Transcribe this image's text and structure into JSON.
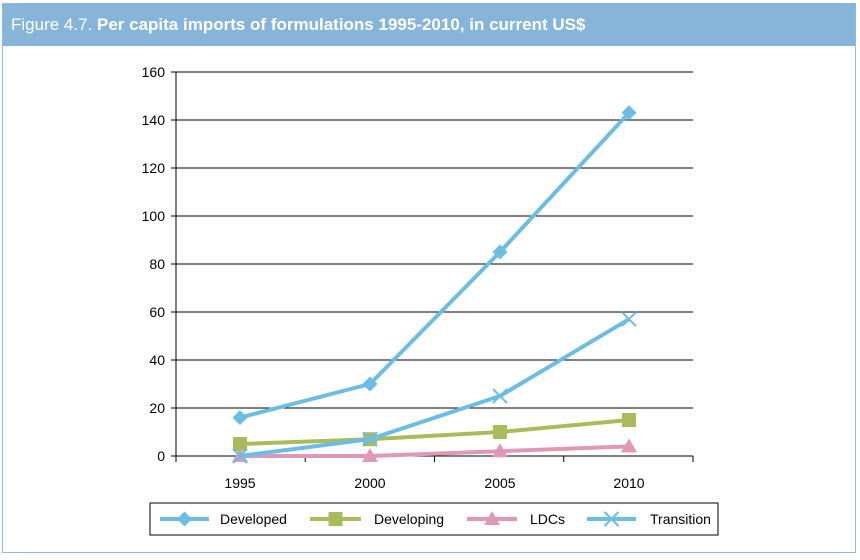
{
  "figure": {
    "label": "Figure 4.7.",
    "title": "Per capita imports of formulations 1995-2010, in current US$"
  },
  "chart_data": {
    "type": "line",
    "title": "Per capita imports of formulations 1995-2010, in current US$",
    "xlabel": "",
    "ylabel": "",
    "x": [
      "1995",
      "2000",
      "2005",
      "2010"
    ],
    "ylim": [
      0,
      160
    ],
    "yticks": [
      0,
      20,
      40,
      60,
      80,
      100,
      120,
      140,
      160
    ],
    "grid": true,
    "legend_position": "bottom",
    "series": [
      {
        "name": "Developed",
        "values": [
          16,
          30,
          85,
          143
        ],
        "color": "#6cbde4",
        "marker": "diamond"
      },
      {
        "name": "Developing",
        "values": [
          5,
          7,
          10,
          15
        ],
        "color": "#a8bc5c",
        "marker": "square"
      },
      {
        "name": "LDCs",
        "values": [
          0,
          0,
          2,
          4
        ],
        "color": "#e098b6",
        "marker": "triangle"
      },
      {
        "name": "Transition",
        "values": [
          0,
          7,
          25,
          57
        ],
        "color": "#6cbde4",
        "marker": "x"
      }
    ]
  }
}
